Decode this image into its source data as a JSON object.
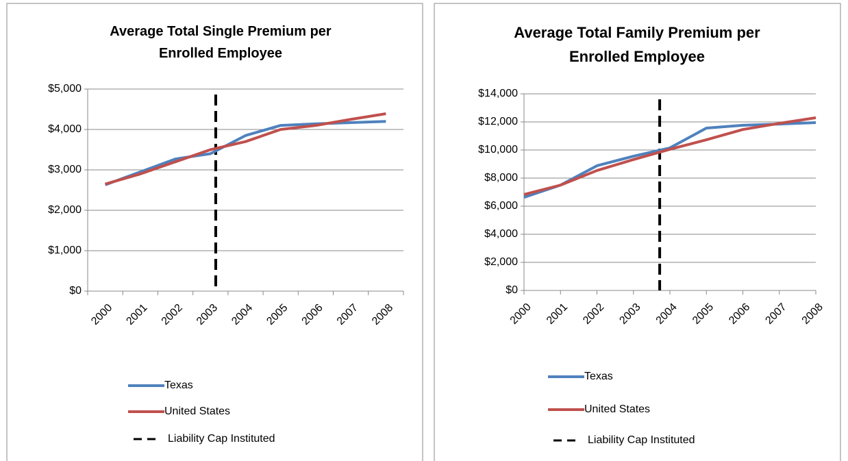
{
  "chart_data": [
    {
      "type": "line",
      "title": "Average Total Single Premium per Enrolled Employee",
      "categories": [
        "2000",
        "2001",
        "2002",
        "2003",
        "2004",
        "2005",
        "2006",
        "2007",
        "2008"
      ],
      "series": [
        {
          "name": "Texas",
          "color": "#4f81bd",
          "values": [
            2630,
            2950,
            3270,
            3400,
            3850,
            4100,
            4140,
            4170,
            4200
          ]
        },
        {
          "name": "United States",
          "color": "#c0504d",
          "values": [
            2650,
            2900,
            3200,
            3500,
            3700,
            4000,
            4100,
            4250,
            4390
          ]
        }
      ],
      "marker": {
        "name": "Liability Cap Instituted",
        "x": 3.15,
        "color": "#000000"
      },
      "ylim": [
        0,
        5000
      ],
      "yticks": [
        {
          "value": 0,
          "label": "$0"
        },
        {
          "value": 1000,
          "label": "$1,000"
        },
        {
          "value": 2000,
          "label": "$2,000"
        },
        {
          "value": 3000,
          "label": "$3,000"
        },
        {
          "value": 4000,
          "label": "$4,000"
        },
        {
          "value": 5000,
          "label": "$5,000"
        }
      ],
      "grid": true
    },
    {
      "type": "line",
      "title": "Average Total Family Premium per Enrolled Employee",
      "categories": [
        "2000",
        "2001",
        "2002",
        "2003",
        "2004",
        "2005",
        "2006",
        "2007",
        "2008"
      ],
      "series": [
        {
          "name": "Texas",
          "color": "#4f81bd",
          "values": [
            6630,
            7500,
            8880,
            9560,
            10150,
            11560,
            11760,
            11850,
            11950
          ]
        },
        {
          "name": "United States",
          "color": "#c0504d",
          "values": [
            6830,
            7500,
            8540,
            9320,
            10050,
            10730,
            11460,
            11900,
            12300
          ]
        }
      ],
      "marker": {
        "name": "Liability Cap Instituted",
        "x": 3.72,
        "color": "#000000"
      },
      "ylim": [
        0,
        14000
      ],
      "yticks": [
        {
          "value": 0,
          "label": "$0"
        },
        {
          "value": 2000,
          "label": "$2,000"
        },
        {
          "value": 4000,
          "label": "$4,000"
        },
        {
          "value": 6000,
          "label": "$6,000"
        },
        {
          "value": 8000,
          "label": "$8,000"
        },
        {
          "value": 10000,
          "label": "$10,000"
        },
        {
          "value": 12000,
          "label": "$12,000"
        },
        {
          "value": 14000,
          "label": "$14,000"
        }
      ],
      "grid": true
    }
  ]
}
